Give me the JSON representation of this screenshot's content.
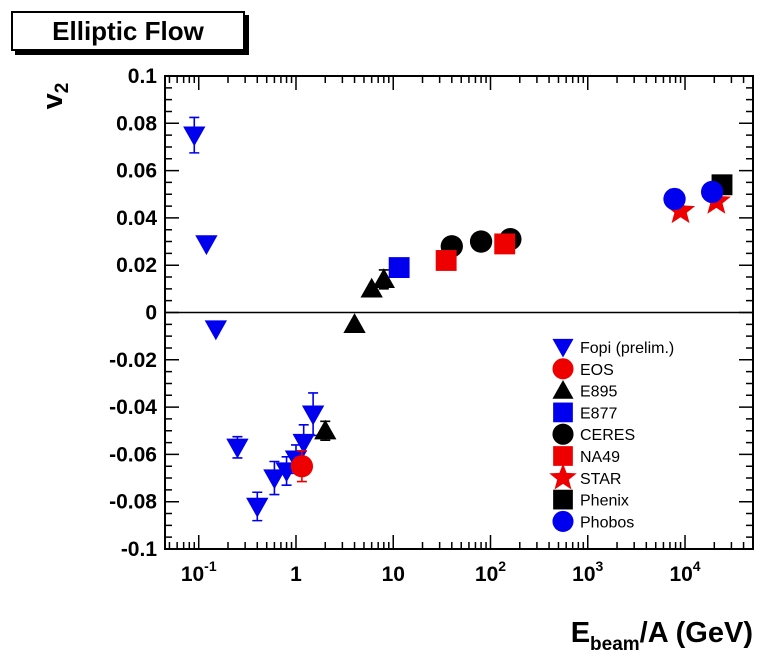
{
  "chart_data": {
    "type": "scatter",
    "title": "Elliptic Flow",
    "xlabel": "E",
    "xlabel_sub": "beam",
    "xlabel_suffix": "/A (GeV)",
    "ylabel": "v",
    "ylabel_sub": "2",
    "xscale": "log",
    "xlim": [
      0.045,
      50000
    ],
    "ylim": [
      -0.1,
      0.1
    ],
    "grid": false,
    "zero_line": true,
    "legend_position": "bottom-right",
    "x_ticks": [
      {
        "value": 0.1,
        "base": "10",
        "exp": "-1"
      },
      {
        "value": 1,
        "text": "1"
      },
      {
        "value": 10,
        "text": "10"
      },
      {
        "value": 100,
        "base": "10",
        "exp": "2"
      },
      {
        "value": 1000,
        "base": "10",
        "exp": "3"
      },
      {
        "value": 10000,
        "base": "10",
        "exp": "4"
      }
    ],
    "y_ticks": [
      {
        "value": 0.1,
        "text": "0.1"
      },
      {
        "value": 0.08,
        "text": "0.08"
      },
      {
        "value": 0.06,
        "text": "0.06"
      },
      {
        "value": 0.04,
        "text": "0.04"
      },
      {
        "value": 0.02,
        "text": "0.02"
      },
      {
        "value": 0,
        "text": "0"
      },
      {
        "value": -0.02,
        "text": "-0.02"
      },
      {
        "value": -0.04,
        "text": "-0.04"
      },
      {
        "value": -0.06,
        "text": "-0.06"
      },
      {
        "value": -0.08,
        "text": "-0.08"
      },
      {
        "value": -0.1,
        "text": "-0.1"
      }
    ],
    "series": [
      {
        "name": "Fopi (prelim.)",
        "marker": "triangle-down",
        "color": "#0000ee",
        "points": [
          {
            "x": 0.09,
            "y": 0.075,
            "err": 0.0075
          },
          {
            "x": 0.12,
            "y": 0.029
          },
          {
            "x": 0.15,
            "y": -0.007
          },
          {
            "x": 0.25,
            "y": -0.057,
            "err": 0.0045
          },
          {
            "x": 0.4,
            "y": -0.082,
            "err": 0.006
          },
          {
            "x": 0.6,
            "y": -0.07,
            "err": 0.007
          },
          {
            "x": 0.8,
            "y": -0.067,
            "err": 0.006
          },
          {
            "x": 1.0,
            "y": -0.062,
            "err": 0.006
          },
          {
            "x": 1.2,
            "y": -0.055,
            "err": 0.0075
          },
          {
            "x": 1.5,
            "y": -0.043,
            "err": 0.009
          }
        ]
      },
      {
        "name": "EOS",
        "marker": "circle",
        "color": "#ee0000",
        "points": [
          {
            "x": 1.15,
            "y": -0.065,
            "err": 0.0065
          }
        ]
      },
      {
        "name": "E895",
        "marker": "triangle-up",
        "color": "#000000",
        "points": [
          {
            "x": 2.0,
            "y": -0.05,
            "err": 0.004
          },
          {
            "x": 4.0,
            "y": -0.005
          },
          {
            "x": 6.0,
            "y": 0.01
          },
          {
            "x": 8.0,
            "y": 0.014,
            "err": 0.004
          }
        ]
      },
      {
        "name": "E877",
        "marker": "square",
        "color": "#0000ee",
        "points": [
          {
            "x": 11.5,
            "y": 0.019
          }
        ]
      },
      {
        "name": "CERES",
        "marker": "circle",
        "color": "#000000",
        "points": [
          {
            "x": 40,
            "y": 0.028
          },
          {
            "x": 80,
            "y": 0.03
          },
          {
            "x": 160,
            "y": 0.031
          }
        ]
      },
      {
        "name": "NA49",
        "marker": "square",
        "color": "#ee0000",
        "points": [
          {
            "x": 35,
            "y": 0.022
          },
          {
            "x": 140,
            "y": 0.029
          }
        ]
      },
      {
        "name": "STAR",
        "marker": "star",
        "color": "#ee0000",
        "points": [
          {
            "x": 9000,
            "y": 0.043
          },
          {
            "x": 21000,
            "y": 0.047
          }
        ]
      },
      {
        "name": "Phenix",
        "marker": "square",
        "color": "#000000",
        "points": [
          {
            "x": 24000,
            "y": 0.054,
            "err": 0.003
          }
        ]
      },
      {
        "name": "Phobos",
        "marker": "circle",
        "color": "#0000ee",
        "points": [
          {
            "x": 7800,
            "y": 0.048,
            "err": 0.004
          },
          {
            "x": 19000,
            "y": 0.051,
            "err": 0.0035
          }
        ]
      }
    ]
  }
}
